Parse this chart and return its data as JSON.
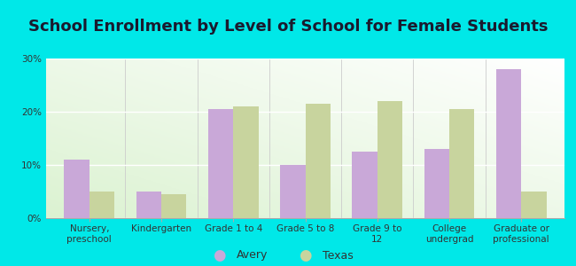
{
  "title": "School Enrollment by Level of School for Female Students",
  "categories": [
    "Nursery,\npreschool",
    "Kindergarten",
    "Grade 1 to 4",
    "Grade 5 to 8",
    "Grade 9 to\n12",
    "College\nundergrad",
    "Graduate or\nprofessional"
  ],
  "avery_values": [
    11,
    5,
    20.5,
    10,
    12.5,
    13,
    28
  ],
  "texas_values": [
    5,
    4.5,
    21,
    21.5,
    22,
    20.5,
    5
  ],
  "avery_color": "#c9a8d8",
  "texas_color": "#c8d49e",
  "background_color": "#00e8e8",
  "ylim": [
    0,
    30
  ],
  "yticks": [
    0,
    10,
    20,
    30
  ],
  "ytick_labels": [
    "0%",
    "10%",
    "20%",
    "30%"
  ],
  "legend_labels": [
    "Avery",
    "Texas"
  ],
  "bar_width": 0.35,
  "title_fontsize": 13,
  "tick_fontsize": 7.5,
  "legend_fontsize": 9
}
